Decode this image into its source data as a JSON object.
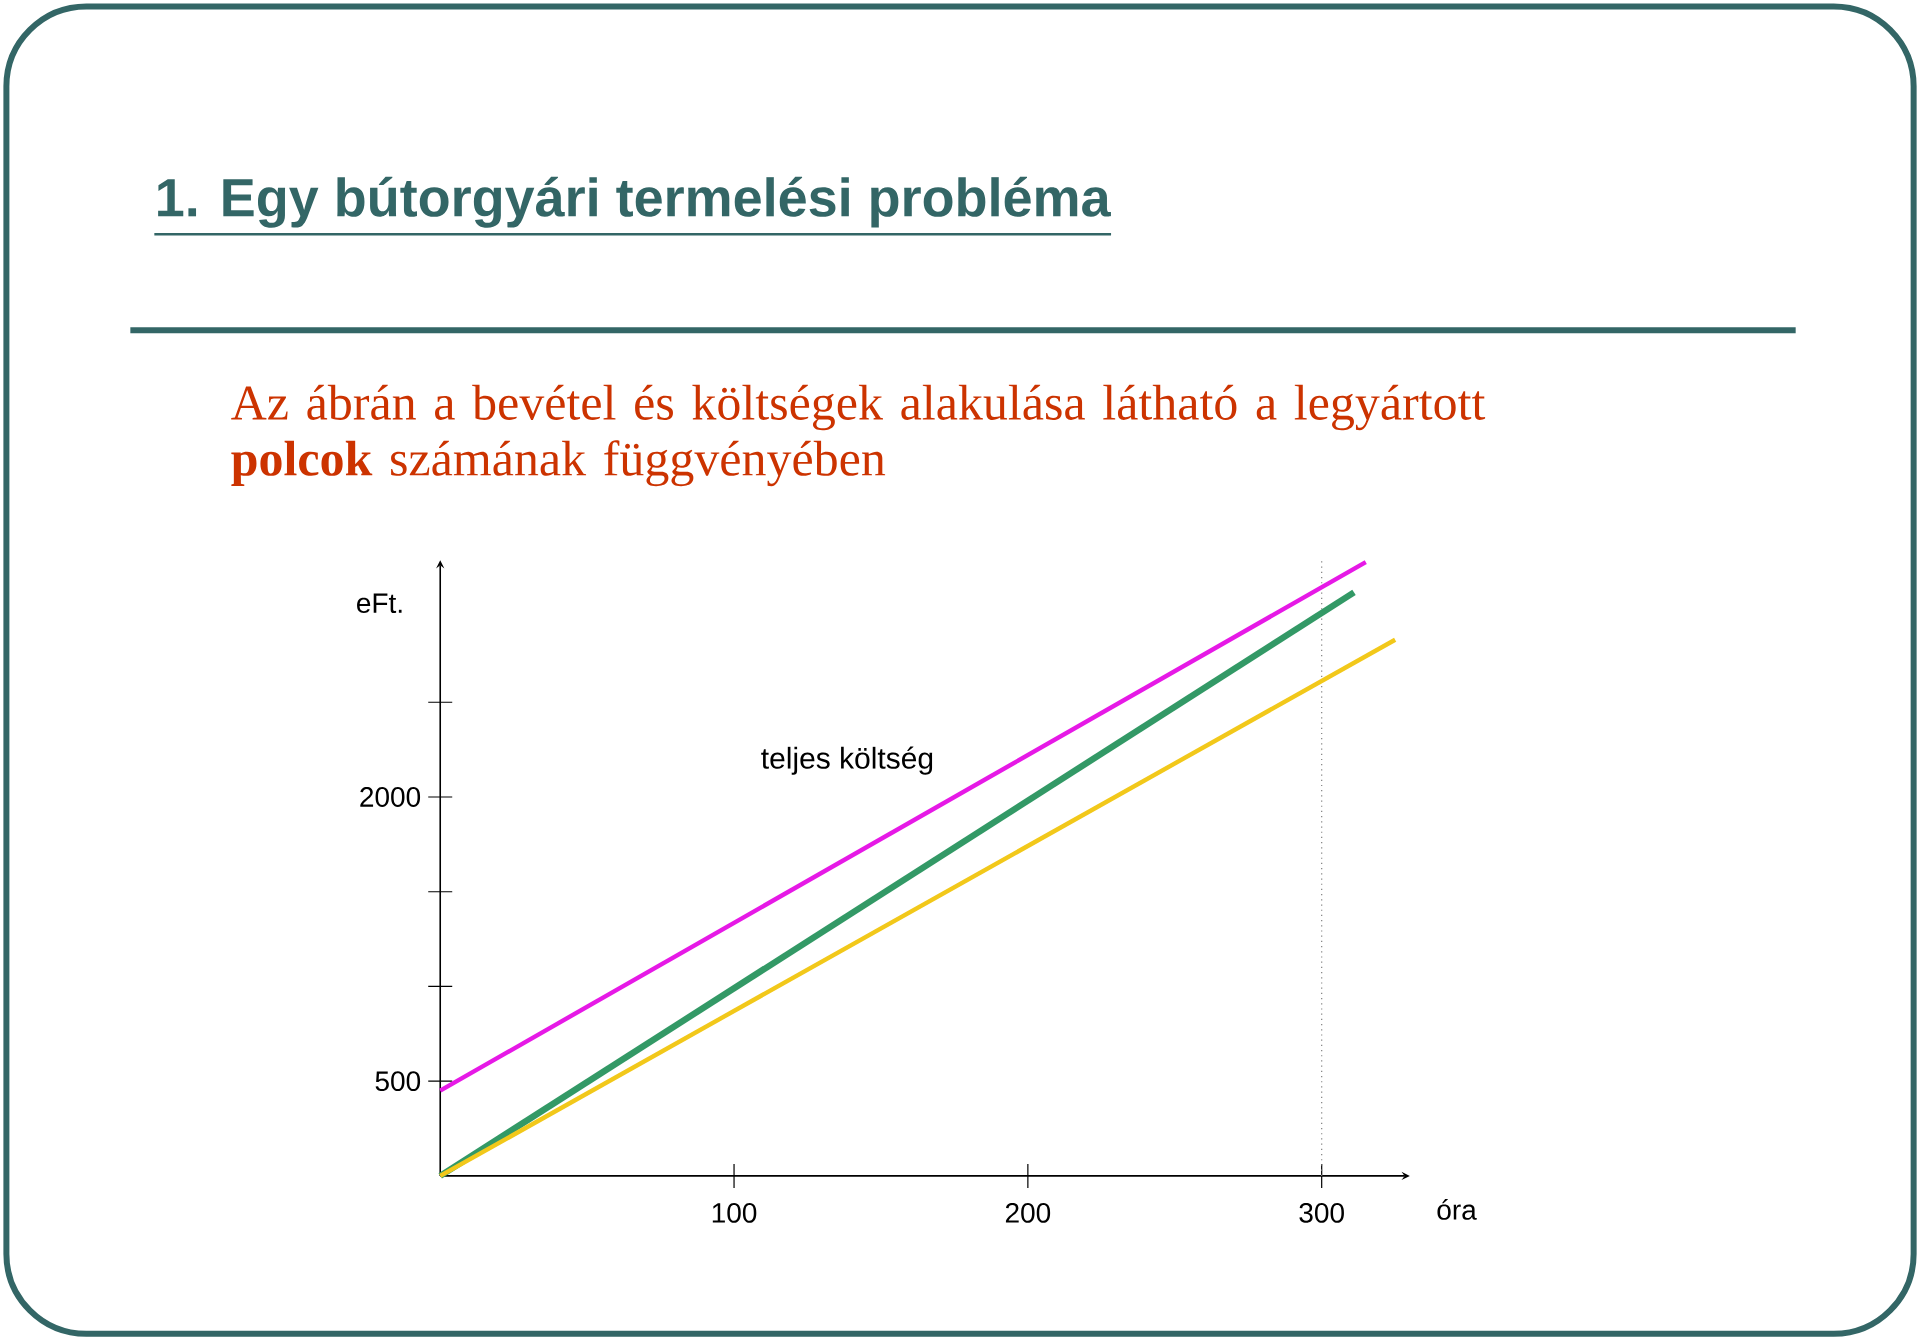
{
  "chart_data": {
    "type": "line",
    "title": "1. Egy bútorgyári termelési probléma",
    "subtitle": "Az ábrán a bevétel és költségek alakulása látható a legyártott **polcok** számának függvényében",
    "xlabel": "óra",
    "ylabel": "eFt.",
    "series": [
      {
        "color": "#e619e6",
        "x": [
          0,
          315
        ],
        "values": [
          450,
          3240
        ]
      },
      {
        "color": "#339966",
        "x": [
          0,
          311
        ],
        "values": [
          0,
          3080
        ]
      },
      {
        "color": "#f2c81a",
        "x": [
          0,
          325
        ],
        "values": [
          0,
          2830
        ]
      }
    ],
    "annotations": [
      "teljes költség"
    ],
    "ref_lines": [
      {
        "axis": "x",
        "value": 300,
        "color": "#808080",
        "line_style": "dotted"
      }
    ],
    "xlim": [
      0,
      330
    ],
    "ylim": [
      0,
      3250
    ],
    "xticks": [
      100,
      200,
      300
    ],
    "yticks": [
      500,
      {
        "value": 1000,
        "label": null
      },
      {
        "value": 1500,
        "label": null
      },
      2000,
      {
        "value": 2500,
        "label": null
      }
    ],
    "marker": "none",
    "line_style": "solid"
  }
}
